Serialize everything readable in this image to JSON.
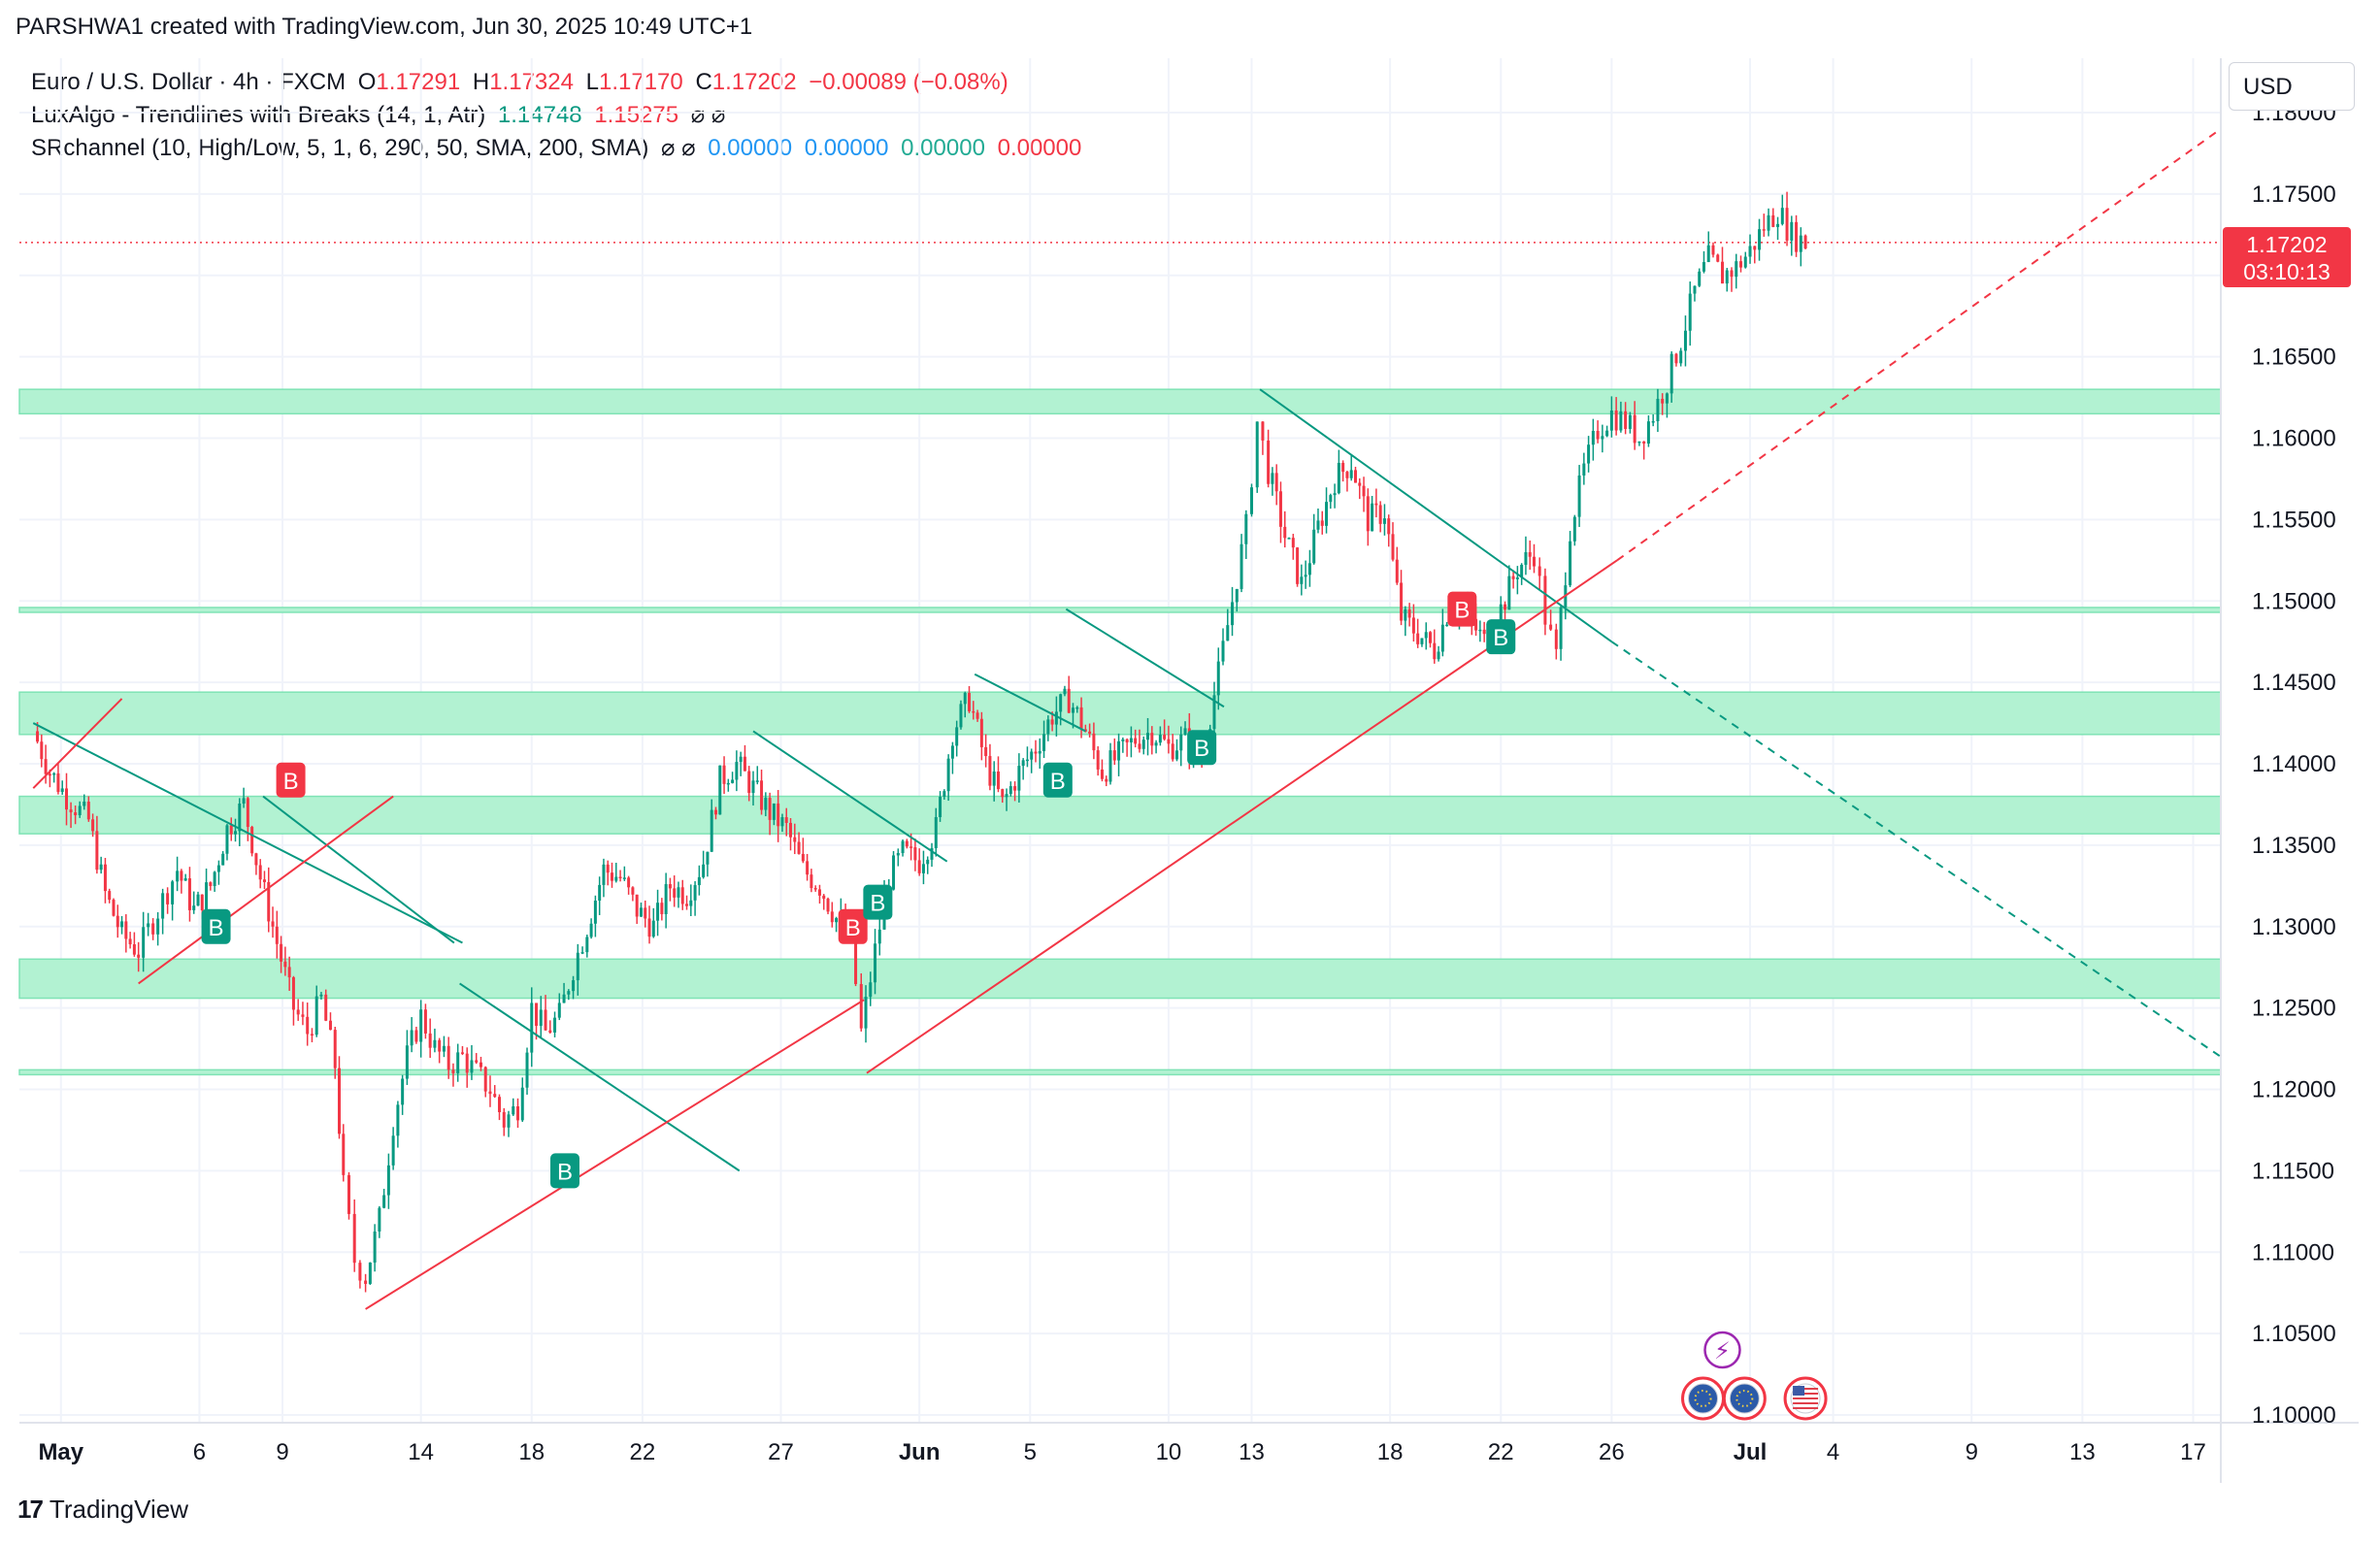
{
  "header": {
    "credit": "PARSHWA1 created with TradingView.com, Jun 30, 2025 10:49 UTC+1"
  },
  "legend": {
    "symbol": "Euro / U.S. Dollar · 4h · FXCM",
    "open_label": "O",
    "open": "1.17291",
    "high_label": "H",
    "high": "1.17324",
    "low_label": "L",
    "low": "1.17170",
    "close_label": "C",
    "close": "1.17202",
    "change": "−0.00089 (−0.08%)",
    "lux_name": "LuxAlgo - Trendlines with Breaks (14, 1, Atr)",
    "lux_v1": "1.14748",
    "lux_v2": "1.15275",
    "lux_icons": "⌀ ⌀",
    "sr_name": "SRchannel (10, High/Low, 5, 1, 6, 290, 50, SMA, 200, SMA)",
    "sr_icons": "⌀ ⌀",
    "sr_v1": "0.00000",
    "sr_v2": "0.00000",
    "sr_v3": "0.00000",
    "sr_v4": "0.00000"
  },
  "price_scale": {
    "currency": "USD",
    "last_price": "1.17202",
    "countdown": "03:10:13"
  },
  "branding": {
    "logo_text": "TradingView",
    "logo_mark": "17"
  },
  "colors": {
    "up": "#089981",
    "down": "#f23645",
    "zone": "#b2f2d2",
    "zone_line": "#7fe3b5",
    "trend_down": "#089981",
    "trend_up": "#f23645",
    "grid": "#f0f3fa"
  },
  "chart_data": {
    "type": "candlestick",
    "symbol": "EUR/USD",
    "timeframe": "4h",
    "ylim": [
      1.1,
      1.18
    ],
    "y_ticks": [
      "1.10000",
      "1.10500",
      "1.11000",
      "1.11500",
      "1.12000",
      "1.12500",
      "1.13000",
      "1.13500",
      "1.14000",
      "1.14500",
      "1.15000",
      "1.15500",
      "1.16000",
      "1.16500",
      "1.17000",
      "1.17500",
      "1.18000"
    ],
    "x_ticks": [
      {
        "label": "May",
        "day": 1,
        "bold": true
      },
      {
        "label": "6",
        "day": 6
      },
      {
        "label": "9",
        "day": 9
      },
      {
        "label": "14",
        "day": 14
      },
      {
        "label": "18",
        "day": 18
      },
      {
        "label": "22",
        "day": 22
      },
      {
        "label": "27",
        "day": 27
      },
      {
        "label": "Jun",
        "day": 32,
        "bold": true
      },
      {
        "label": "5",
        "day": 36
      },
      {
        "label": "10",
        "day": 41
      },
      {
        "label": "13",
        "day": 44
      },
      {
        "label": "18",
        "day": 49
      },
      {
        "label": "22",
        "day": 53
      },
      {
        "label": "26",
        "day": 57
      },
      {
        "label": "Jul",
        "day": 62,
        "bold": true
      },
      {
        "label": "4",
        "day": 65
      },
      {
        "label": "9",
        "day": 70
      },
      {
        "label": "13",
        "day": 74
      },
      {
        "label": "17",
        "day": 78
      }
    ],
    "price_path": [
      [
        0,
        1.142
      ],
      [
        0.6,
        1.1395
      ],
      [
        1.2,
        1.138
      ],
      [
        2.0,
        1.1365
      ],
      [
        2.6,
        1.132
      ],
      [
        3.2,
        1.1295
      ],
      [
        3.8,
        1.1285
      ],
      [
        4.5,
        1.131
      ],
      [
        5.2,
        1.1335
      ],
      [
        5.8,
        1.131
      ],
      [
        6.4,
        1.1325
      ],
      [
        7.0,
        1.136
      ],
      [
        7.6,
        1.1375
      ],
      [
        8.2,
        1.133
      ],
      [
        8.8,
        1.129
      ],
      [
        9.4,
        1.125
      ],
      [
        9.9,
        1.1235
      ],
      [
        10.4,
        1.1255
      ],
      [
        10.9,
        1.1215
      ],
      [
        11.2,
        1.114
      ],
      [
        11.6,
        1.1095
      ],
      [
        12.0,
        1.1085
      ],
      [
        12.5,
        1.112
      ],
      [
        13.0,
        1.118
      ],
      [
        13.5,
        1.122
      ],
      [
        14.0,
        1.1245
      ],
      [
        14.5,
        1.1225
      ],
      [
        15.0,
        1.1215
      ],
      [
        15.5,
        1.122
      ],
      [
        16.0,
        1.121
      ],
      [
        16.5,
        1.12
      ],
      [
        17.0,
        1.118
      ],
      [
        17.5,
        1.119
      ],
      [
        18.0,
        1.125
      ],
      [
        18.5,
        1.1235
      ],
      [
        19.0,
        1.1245
      ],
      [
        19.5,
        1.1275
      ],
      [
        20.0,
        1.13
      ],
      [
        20.6,
        1.1335
      ],
      [
        21.2,
        1.133
      ],
      [
        21.8,
        1.131
      ],
      [
        22.4,
        1.13
      ],
      [
        23.0,
        1.1325
      ],
      [
        23.6,
        1.132
      ],
      [
        24.2,
        1.134
      ],
      [
        24.8,
        1.139
      ],
      [
        25.4,
        1.14
      ],
      [
        26.0,
        1.1385
      ],
      [
        26.6,
        1.137
      ],
      [
        27.2,
        1.136
      ],
      [
        27.8,
        1.1335
      ],
      [
        28.4,
        1.1325
      ],
      [
        29.0,
        1.1305
      ],
      [
        29.5,
        1.1295
      ],
      [
        29.9,
        1.1235
      ],
      [
        30.4,
        1.1285
      ],
      [
        30.9,
        1.133
      ],
      [
        31.4,
        1.1345
      ],
      [
        32.0,
        1.134
      ],
      [
        32.6,
        1.136
      ],
      [
        33.2,
        1.142
      ],
      [
        33.8,
        1.144
      ],
      [
        34.4,
        1.14
      ],
      [
        35.0,
        1.1375
      ],
      [
        35.6,
        1.1395
      ],
      [
        36.2,
        1.141
      ],
      [
        36.8,
        1.143
      ],
      [
        37.4,
        1.144
      ],
      [
        38.0,
        1.142
      ],
      [
        38.6,
        1.1395
      ],
      [
        39.2,
        1.1405
      ],
      [
        39.8,
        1.1415
      ],
      [
        40.4,
        1.142
      ],
      [
        41.0,
        1.141
      ],
      [
        41.6,
        1.1415
      ],
      [
        42.2,
        1.1405
      ],
      [
        42.8,
        1.1455
      ],
      [
        43.3,
        1.15
      ],
      [
        43.8,
        1.1545
      ],
      [
        44.2,
        1.161
      ],
      [
        44.6,
        1.158
      ],
      [
        45.2,
        1.154
      ],
      [
        45.8,
        1.151
      ],
      [
        46.4,
        1.1545
      ],
      [
        47.0,
        1.1575
      ],
      [
        47.6,
        1.1585
      ],
      [
        48.2,
        1.155
      ],
      [
        48.8,
        1.1555
      ],
      [
        49.4,
        1.149
      ],
      [
        50.0,
        1.148
      ],
      [
        50.6,
        1.147
      ],
      [
        51.2,
        1.15
      ],
      [
        51.8,
        1.149
      ],
      [
        52.4,
        1.1475
      ],
      [
        53.0,
        1.1495
      ],
      [
        53.6,
        1.152
      ],
      [
        54.2,
        1.153
      ],
      [
        54.6,
        1.149
      ],
      [
        55.0,
        1.1465
      ],
      [
        55.5,
        1.1545
      ],
      [
        56.0,
        1.158
      ],
      [
        56.5,
        1.1605
      ],
      [
        57.0,
        1.1615
      ],
      [
        57.5,
        1.161
      ],
      [
        58.0,
        1.16
      ],
      [
        58.5,
        1.1615
      ],
      [
        59.0,
        1.1635
      ],
      [
        59.5,
        1.166
      ],
      [
        60.0,
        1.169
      ],
      [
        60.5,
        1.171
      ],
      [
        61.0,
        1.17
      ],
      [
        61.5,
        1.1705
      ],
      [
        62.0,
        1.1715
      ],
      [
        62.5,
        1.173
      ],
      [
        63.0,
        1.174
      ],
      [
        63.5,
        1.1725
      ],
      [
        64.0,
        1.172
      ]
    ],
    "sr_zones": [
      {
        "from": 1.1615,
        "to": 1.163
      },
      {
        "from": 1.1493,
        "to": 1.1496
      },
      {
        "from": 1.1418,
        "to": 1.1444
      },
      {
        "from": 1.1357,
        "to": 1.138
      },
      {
        "from": 1.1256,
        "to": 1.128
      },
      {
        "from": 1.1209,
        "to": 1.1212
      }
    ],
    "trendlines": [
      {
        "kind": "down",
        "x1": 0,
        "y1": 1.1425,
        "x2": 15.5,
        "y2": 1.129,
        "dashed": false
      },
      {
        "kind": "down",
        "x1": 8.3,
        "y1": 1.138,
        "x2": 15.2,
        "y2": 1.129,
        "dashed": false
      },
      {
        "kind": "down",
        "x1": 15.4,
        "y1": 1.1265,
        "x2": 25.5,
        "y2": 1.115,
        "dashed": false
      },
      {
        "kind": "down",
        "x1": 26.0,
        "y1": 1.142,
        "x2": 33.0,
        "y2": 1.134,
        "dashed": false
      },
      {
        "kind": "down",
        "x1": 34.0,
        "y1": 1.1455,
        "x2": 38.0,
        "y2": 1.142,
        "dashed": false
      },
      {
        "kind": "down",
        "x1": 37.3,
        "y1": 1.1495,
        "x2": 43.0,
        "y2": 1.1435,
        "dashed": false
      },
      {
        "kind": "down",
        "x1": 44.3,
        "y1": 1.163,
        "x2": 57.0,
        "y2": 1.1475,
        "dashed": false
      },
      {
        "kind": "down",
        "x1": 57.0,
        "y1": 1.1475,
        "x2": 79.0,
        "y2": 1.122,
        "dashed": true
      },
      {
        "kind": "up",
        "x1": 0,
        "y1": 1.1385,
        "x2": 3.2,
        "y2": 1.144,
        "dashed": false
      },
      {
        "kind": "up",
        "x1": 3.8,
        "y1": 1.1265,
        "x2": 13.0,
        "y2": 1.138,
        "dashed": false
      },
      {
        "kind": "up",
        "x1": 12.0,
        "y1": 1.1065,
        "x2": 30.0,
        "y2": 1.1255,
        "dashed": false
      },
      {
        "kind": "up",
        "x1": 30.1,
        "y1": 1.121,
        "x2": 57.2,
        "y2": 1.1525,
        "dashed": false
      },
      {
        "kind": "up",
        "x1": 57.2,
        "y1": 1.1525,
        "x2": 79.0,
        "y2": 1.179,
        "dashed": true
      }
    ],
    "signals": [
      {
        "label": "B",
        "type": "sell",
        "day": 9.3,
        "price": 1.139
      },
      {
        "label": "B",
        "type": "buy",
        "day": 6.6,
        "price": 1.13
      },
      {
        "label": "B",
        "type": "buy",
        "day": 19.2,
        "price": 1.115
      },
      {
        "label": "B",
        "type": "sell",
        "day": 29.6,
        "price": 1.13
      },
      {
        "label": "B",
        "type": "buy",
        "day": 30.5,
        "price": 1.1315
      },
      {
        "label": "B",
        "type": "buy",
        "day": 37.0,
        "price": 1.139
      },
      {
        "label": "B",
        "type": "buy",
        "day": 42.2,
        "price": 1.141
      },
      {
        "label": "B",
        "type": "sell",
        "day": 51.6,
        "price": 1.1495
      },
      {
        "label": "B",
        "type": "buy",
        "day": 53.0,
        "price": 1.1478
      }
    ],
    "events": [
      {
        "kind": "lightning",
        "day": 61.0
      },
      {
        "kind": "eu",
        "day": 60.3
      },
      {
        "kind": "eu",
        "day": 61.8
      },
      {
        "kind": "us",
        "day": 64.0
      }
    ]
  }
}
